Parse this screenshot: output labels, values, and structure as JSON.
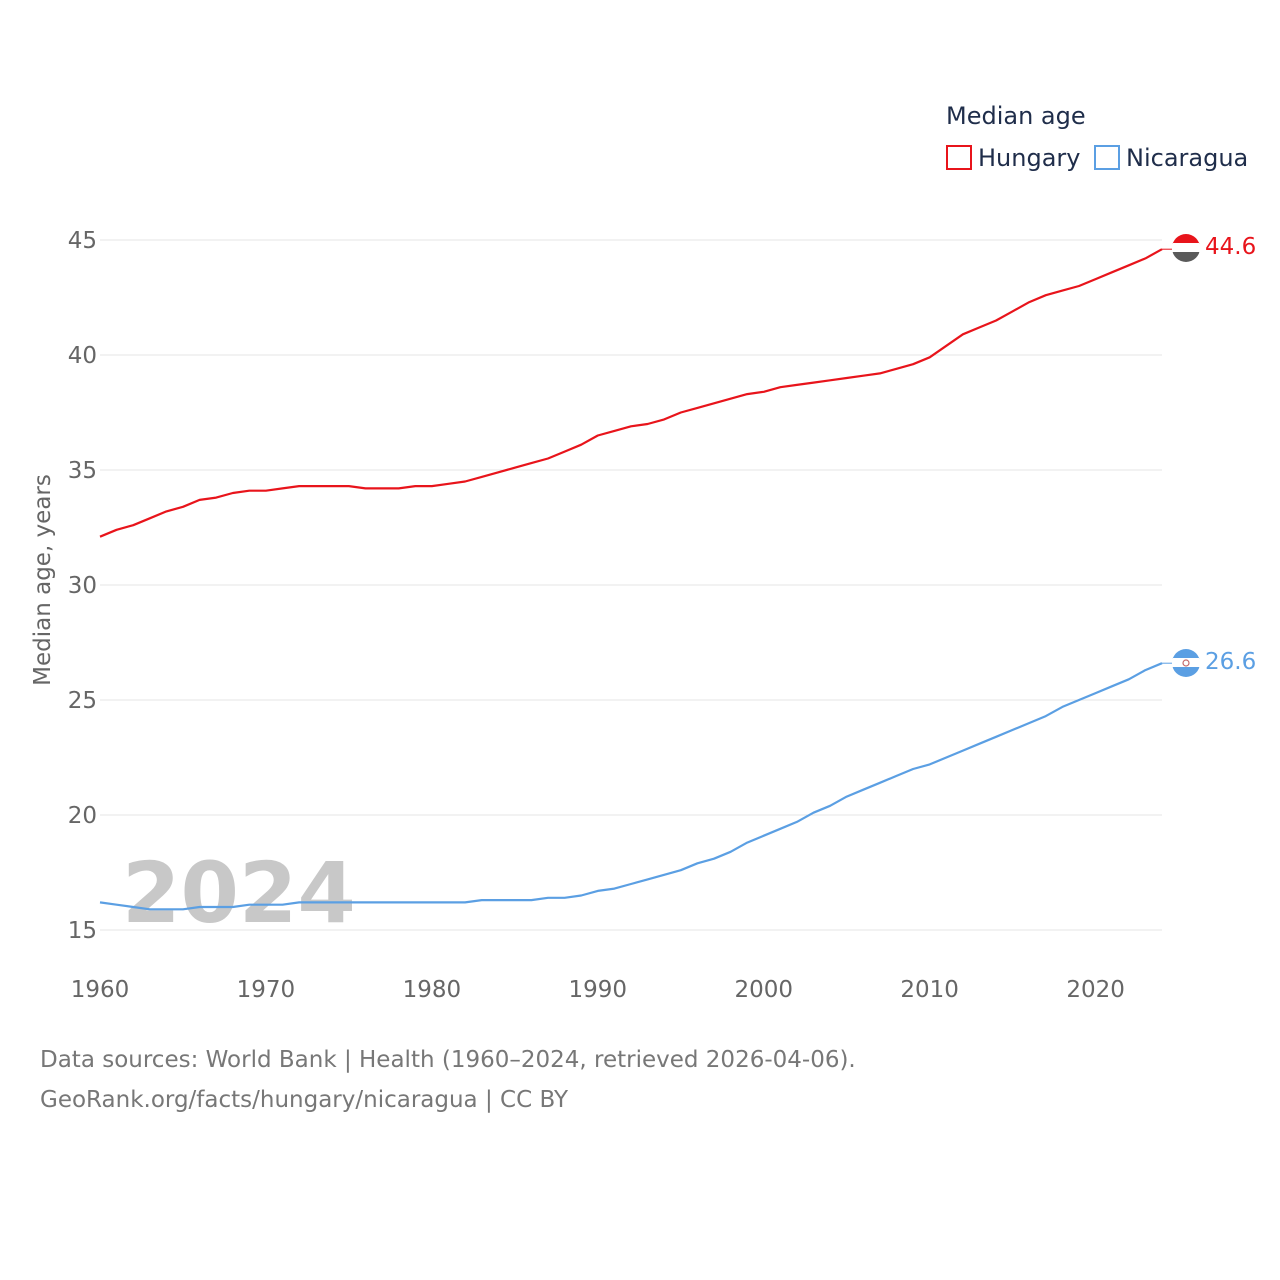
{
  "chart_data": {
    "type": "line",
    "ylabel": "Median age, years",
    "ylim": [
      15,
      45
    ],
    "xlim": [
      1960,
      2024
    ],
    "yticks": [
      15,
      20,
      25,
      30,
      35,
      40,
      45
    ],
    "xticks": [
      1960,
      1970,
      1980,
      1990,
      2000,
      2010,
      2020
    ],
    "legend_title": "Median age",
    "legend_position": "top-right",
    "watermark_year": "2024",
    "x": [
      1960,
      1961,
      1962,
      1963,
      1964,
      1965,
      1966,
      1967,
      1968,
      1969,
      1970,
      1971,
      1972,
      1973,
      1974,
      1975,
      1976,
      1977,
      1978,
      1979,
      1980,
      1981,
      1982,
      1983,
      1984,
      1985,
      1986,
      1987,
      1988,
      1989,
      1990,
      1991,
      1992,
      1993,
      1994,
      1995,
      1996,
      1997,
      1998,
      1999,
      2000,
      2001,
      2002,
      2003,
      2004,
      2005,
      2006,
      2007,
      2008,
      2009,
      2010,
      2011,
      2012,
      2013,
      2014,
      2015,
      2016,
      2017,
      2018,
      2019,
      2020,
      2021,
      2022,
      2023,
      2024
    ],
    "series": [
      {
        "name": "Hungary",
        "color": "#e8141b",
        "end_label": "44.6",
        "values": [
          32.1,
          32.4,
          32.6,
          32.9,
          33.2,
          33.4,
          33.7,
          33.8,
          34.0,
          34.1,
          34.1,
          34.2,
          34.3,
          34.3,
          34.3,
          34.3,
          34.2,
          34.2,
          34.2,
          34.3,
          34.3,
          34.4,
          34.5,
          34.7,
          34.9,
          35.1,
          35.3,
          35.5,
          35.8,
          36.1,
          36.5,
          36.7,
          36.9,
          37.0,
          37.2,
          37.5,
          37.7,
          37.9,
          38.1,
          38.3,
          38.4,
          38.6,
          38.7,
          38.8,
          38.9,
          39.0,
          39.1,
          39.2,
          39.4,
          39.6,
          39.9,
          40.4,
          40.9,
          41.2,
          41.5,
          41.9,
          42.3,
          42.6,
          42.8,
          43.0,
          43.3,
          43.6,
          43.9,
          44.2,
          44.6
        ]
      },
      {
        "name": "Nicaragua",
        "color": "#5b9fe3",
        "end_label": "26.6",
        "values": [
          16.2,
          16.1,
          16.0,
          15.9,
          15.9,
          15.9,
          16.0,
          16.0,
          16.0,
          16.1,
          16.1,
          16.1,
          16.2,
          16.2,
          16.2,
          16.2,
          16.2,
          16.2,
          16.2,
          16.2,
          16.2,
          16.2,
          16.2,
          16.3,
          16.3,
          16.3,
          16.3,
          16.4,
          16.4,
          16.5,
          16.7,
          16.8,
          17.0,
          17.2,
          17.4,
          17.6,
          17.9,
          18.1,
          18.4,
          18.8,
          19.1,
          19.4,
          19.7,
          20.1,
          20.4,
          20.8,
          21.1,
          21.4,
          21.7,
          22.0,
          22.2,
          22.5,
          22.8,
          23.1,
          23.4,
          23.7,
          24.0,
          24.3,
          24.7,
          25.0,
          25.3,
          25.6,
          25.9,
          26.3,
          26.6
        ]
      }
    ]
  },
  "source": {
    "line1": "Data sources: World Bank | Health (1960–2024, retrieved 2026-04-06).",
    "line2": "GeoRank.org/facts/hungary/nicaragua | CC BY"
  }
}
